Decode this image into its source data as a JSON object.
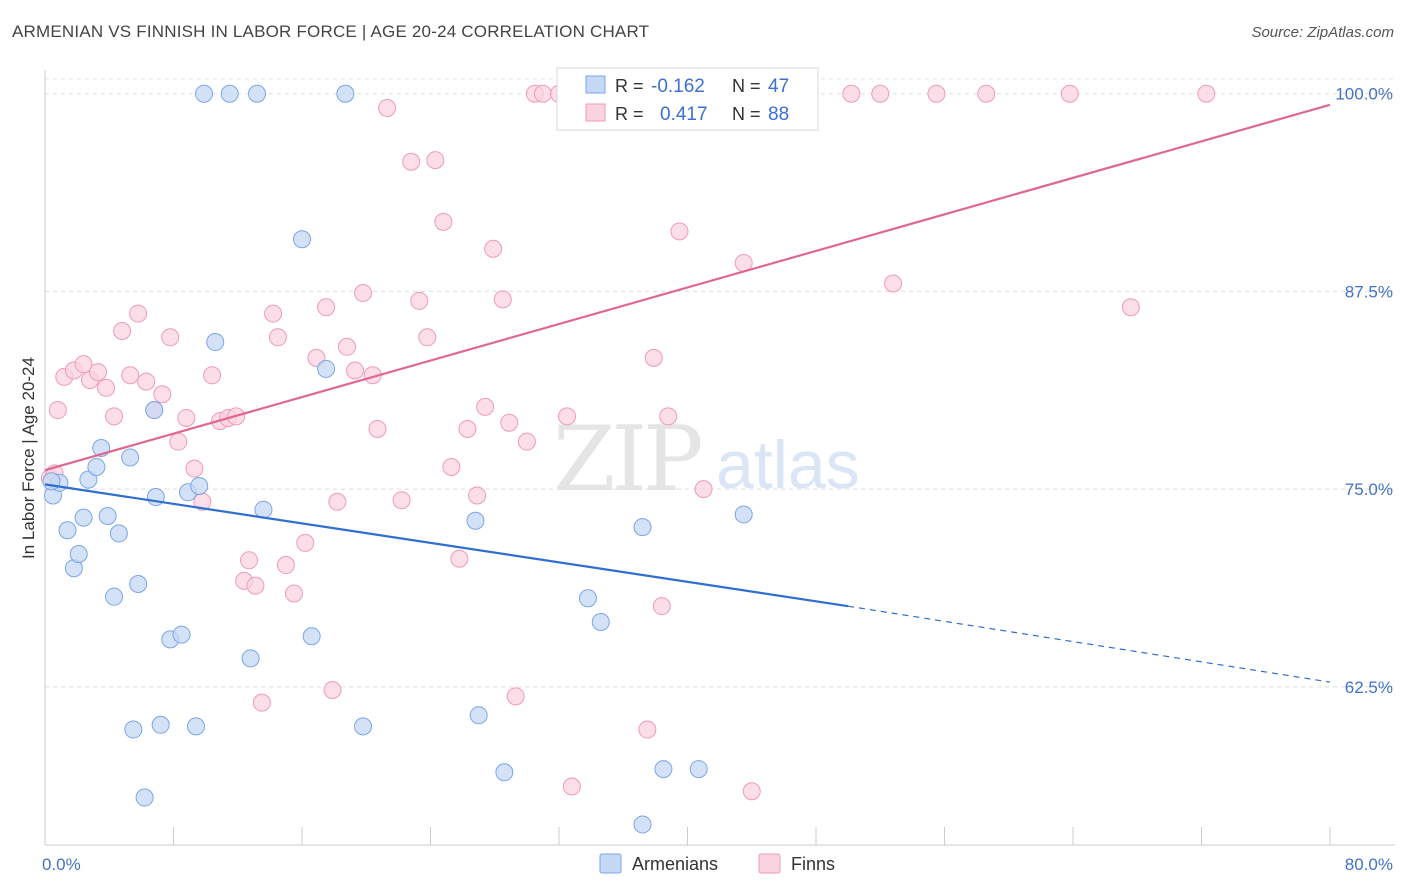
{
  "title": "ARMENIAN VS FINNISH IN LABOR FORCE | AGE 20-24 CORRELATION CHART",
  "source": "Source: ZipAtlas.com",
  "watermark": {
    "zip": "ZIP",
    "atlas": "atlas"
  },
  "chart_data": {
    "type": "scatter",
    "xlabel": "",
    "ylabel": "In Labor Force | Age 20-24",
    "xlim": [
      0,
      80
    ],
    "ylim": [
      52.5,
      101.5
    ],
    "x_tick_labels": [
      {
        "value": 0,
        "label": "0.0%"
      },
      {
        "value": 80,
        "label": "80.0%"
      }
    ],
    "y_tick_labels": [
      {
        "value": 100,
        "label": "100.0%"
      },
      {
        "value": 87.5,
        "label": "87.5%"
      },
      {
        "value": 75,
        "label": "75.0%"
      },
      {
        "value": 62.5,
        "label": "62.5%"
      }
    ],
    "grid": true,
    "legend_position": "top-center",
    "series": [
      {
        "name": "Armenians",
        "color": "#7aa6e8",
        "fill": "#c5d8f5",
        "line_color": "#2f6fd0",
        "R": "-0.162",
        "N": "47",
        "trend": {
          "x0": 0,
          "y0": 75.3,
          "x1": 50,
          "y1": 67.6,
          "x_dash_end": 80,
          "y_dash_end": 62.8
        },
        "points": [
          [
            0.5,
            74.6
          ],
          [
            0.9,
            75.4
          ],
          [
            1.4,
            72.4
          ],
          [
            1.8,
            70.0
          ],
          [
            2.1,
            70.9
          ],
          [
            2.4,
            73.2
          ],
          [
            2.7,
            75.6
          ],
          [
            3.2,
            76.4
          ],
          [
            3.5,
            77.6
          ],
          [
            3.9,
            73.3
          ],
          [
            4.3,
            68.2
          ],
          [
            4.6,
            72.2
          ],
          [
            5.3,
            77.0
          ],
          [
            5.5,
            59.8
          ],
          [
            5.8,
            69.0
          ],
          [
            6.2,
            55.5
          ],
          [
            6.8,
            80.0
          ],
          [
            6.9,
            74.5
          ],
          [
            7.2,
            60.1
          ],
          [
            7.8,
            65.5
          ],
          [
            8.5,
            65.8
          ],
          [
            8.9,
            74.8
          ],
          [
            9.4,
            60.0
          ],
          [
            9.6,
            75.2
          ],
          [
            9.9,
            100.0
          ],
          [
            10.6,
            84.3
          ],
          [
            11.5,
            100.0
          ],
          [
            12.8,
            64.3
          ],
          [
            13.2,
            100.0
          ],
          [
            13.6,
            73.7
          ],
          [
            16.0,
            90.8
          ],
          [
            16.6,
            65.7
          ],
          [
            17.5,
            82.6
          ],
          [
            18.7,
            100.0
          ],
          [
            19.8,
            60.0
          ],
          [
            26.8,
            73.0
          ],
          [
            27.0,
            60.7
          ],
          [
            28.6,
            57.1
          ],
          [
            33.6,
            100.0
          ],
          [
            33.8,
            68.1
          ],
          [
            34.6,
            66.6
          ],
          [
            37.2,
            72.6
          ],
          [
            37.2,
            53.8
          ],
          [
            38.5,
            57.3
          ],
          [
            40.7,
            57.3
          ],
          [
            43.5,
            73.4
          ],
          [
            0.4,
            75.5
          ]
        ]
      },
      {
        "name": "Finns",
        "color": "#ee9cb6",
        "fill": "#f9d3df",
        "line_color": "#e06890",
        "R": "0.417",
        "N": "88",
        "trend": {
          "x0": 0,
          "y0": 76.2,
          "x1": 80,
          "y1": 99.3
        },
        "points": [
          [
            0.3,
            75.7
          ],
          [
            0.8,
            80.0
          ],
          [
            1.2,
            82.1
          ],
          [
            1.8,
            82.5
          ],
          [
            2.4,
            82.9
          ],
          [
            2.8,
            81.9
          ],
          [
            3.3,
            82.4
          ],
          [
            3.8,
            81.4
          ],
          [
            4.3,
            79.6
          ],
          [
            4.8,
            85.0
          ],
          [
            5.3,
            82.2
          ],
          [
            5.8,
            86.1
          ],
          [
            6.3,
            81.8
          ],
          [
            6.8,
            80.0
          ],
          [
            7.3,
            81.0
          ],
          [
            7.8,
            84.6
          ],
          [
            8.3,
            78.0
          ],
          [
            8.8,
            79.5
          ],
          [
            9.3,
            76.3
          ],
          [
            9.8,
            74.2
          ],
          [
            10.4,
            82.2
          ],
          [
            10.9,
            79.3
          ],
          [
            11.4,
            79.5
          ],
          [
            11.9,
            79.6
          ],
          [
            12.4,
            69.2
          ],
          [
            12.7,
            70.5
          ],
          [
            13.1,
            68.9
          ],
          [
            13.5,
            61.5
          ],
          [
            14.2,
            86.1
          ],
          [
            14.5,
            84.6
          ],
          [
            15.0,
            70.2
          ],
          [
            15.5,
            68.4
          ],
          [
            16.2,
            71.6
          ],
          [
            16.9,
            83.3
          ],
          [
            17.5,
            86.5
          ],
          [
            17.9,
            62.3
          ],
          [
            18.2,
            74.2
          ],
          [
            18.8,
            84.0
          ],
          [
            19.3,
            82.5
          ],
          [
            19.8,
            87.4
          ],
          [
            20.4,
            82.2
          ],
          [
            20.7,
            78.8
          ],
          [
            21.3,
            99.1
          ],
          [
            22.2,
            74.3
          ],
          [
            22.8,
            95.7
          ],
          [
            23.3,
            86.9
          ],
          [
            23.8,
            84.6
          ],
          [
            24.3,
            95.8
          ],
          [
            24.8,
            91.9
          ],
          [
            25.3,
            76.4
          ],
          [
            25.8,
            70.6
          ],
          [
            26.3,
            78.8
          ],
          [
            26.9,
            74.6
          ],
          [
            27.4,
            80.2
          ],
          [
            27.9,
            90.2
          ],
          [
            28.5,
            87.0
          ],
          [
            28.9,
            79.2
          ],
          [
            29.3,
            61.9
          ],
          [
            30.0,
            78.0
          ],
          [
            30.5,
            100.0
          ],
          [
            31.0,
            100.0
          ],
          [
            32.0,
            100.0
          ],
          [
            32.5,
            79.6
          ],
          [
            32.8,
            56.2
          ],
          [
            34.8,
            100.0
          ],
          [
            35.5,
            100.0
          ],
          [
            37.5,
            59.8
          ],
          [
            37.9,
            83.3
          ],
          [
            38.4,
            67.6
          ],
          [
            38.8,
            79.6
          ],
          [
            39.5,
            91.3
          ],
          [
            41.0,
            75.0
          ],
          [
            43.5,
            89.3
          ],
          [
            43.9,
            100.0
          ],
          [
            44.5,
            100.0
          ],
          [
            45.0,
            100.0
          ],
          [
            46.0,
            100.0
          ],
          [
            47.0,
            100.0
          ],
          [
            50.2,
            100.0
          ],
          [
            52.0,
            100.0
          ],
          [
            52.8,
            88.0
          ],
          [
            55.5,
            100.0
          ],
          [
            58.6,
            100.0
          ],
          [
            63.8,
            100.0
          ],
          [
            67.6,
            86.5
          ],
          [
            72.3,
            100.0
          ],
          [
            44.0,
            55.9
          ],
          [
            0.6,
            76.0
          ]
        ]
      }
    ]
  },
  "legend": {
    "r_label": "R =",
    "n_label": "N =",
    "armenians_r": "-0.162",
    "armenians_n": "47",
    "finns_r": "0.417",
    "finns_n": "88"
  },
  "bottom_legend": {
    "armenians": "Armenians",
    "finns": "Finns"
  }
}
